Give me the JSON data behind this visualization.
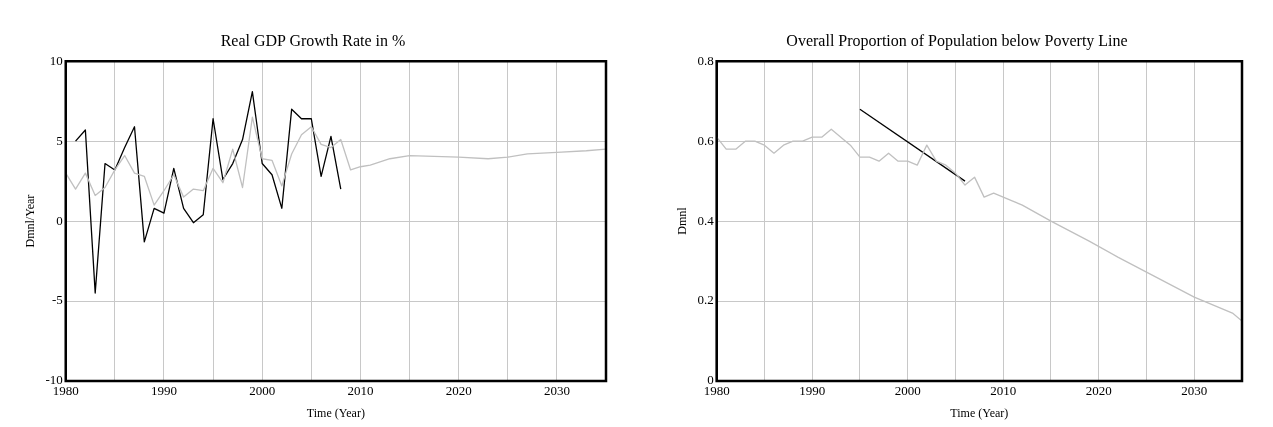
{
  "chart_data": [
    {
      "type": "line",
      "title": "Real GDP Growth Rate in %",
      "xlabel": "Time (Year)",
      "ylabel": "Dmnl/Year",
      "xlim": [
        1980,
        2035
      ],
      "ylim": [
        -10,
        10
      ],
      "xticks": [
        1980,
        {
          "value": 1985,
          "label": null
        },
        1990,
        {
          "value": 1995,
          "label": null
        },
        2000,
        {
          "value": 2005,
          "label": null
        },
        2010,
        {
          "value": 2015,
          "label": null
        },
        2020,
        {
          "value": 2025,
          "label": null
        },
        2030,
        {
          "value": 2035,
          "label": null
        }
      ],
      "yticks": [
        -10,
        -5,
        0,
        5,
        10
      ],
      "grid": true,
      "legend": false,
      "line_style": "solid",
      "series": [
        {
          "color": "#c0c0c0",
          "x": [
            1980,
            1981,
            1982,
            1983,
            1984,
            1985,
            1986,
            1987,
            1988,
            1989,
            1990,
            1991,
            1992,
            1993,
            1994,
            1995,
            1996,
            1997,
            1998,
            1999,
            2000,
            2001,
            2002,
            2003,
            2004,
            2005,
            2006,
            2007,
            2008,
            2009,
            2010,
            2011,
            2013,
            2015,
            2020,
            2023,
            2025,
            2027,
            2030,
            2033,
            2035
          ],
          "values": [
            3.0,
            2.0,
            3.0,
            1.6,
            2.1,
            3.2,
            4.1,
            3.0,
            2.8,
            1.0,
            1.9,
            2.9,
            1.5,
            2.0,
            1.9,
            3.3,
            2.4,
            4.5,
            2.1,
            6.5,
            3.9,
            3.8,
            2.2,
            4.2,
            5.4,
            5.9,
            4.8,
            4.6,
            5.1,
            3.2,
            3.4,
            3.5,
            3.9,
            4.1,
            4.0,
            3.9,
            4.0,
            4.2,
            4.3,
            4.4,
            4.5
          ]
        },
        {
          "color": "#000000",
          "x": [
            1981,
            1982,
            1983,
            1984,
            1985,
            1986,
            1987,
            1988,
            1989,
            1990,
            1991,
            1992,
            1993,
            1994,
            1995,
            1996,
            1997,
            1998,
            1999,
            2000,
            2001,
            2002,
            2003,
            2004,
            2005,
            2006,
            2007,
            2008
          ],
          "values": [
            5.0,
            5.7,
            -4.5,
            3.6,
            3.2,
            4.6,
            5.9,
            -1.3,
            0.8,
            0.5,
            3.3,
            0.8,
            -0.1,
            0.4,
            6.4,
            2.6,
            3.6,
            5.1,
            8.1,
            3.6,
            2.9,
            0.8,
            7.0,
            6.4,
            6.4,
            2.8,
            5.3,
            2.0
          ]
        }
      ]
    },
    {
      "type": "line",
      "title": "Overall Proportion of Population below Poverty Line",
      "xlabel": "Time (Year)",
      "ylabel": "Dmnl",
      "xlim": [
        1980,
        2035
      ],
      "ylim": [
        0,
        0.8
      ],
      "xticks": [
        1980,
        {
          "value": 1985,
          "label": null
        },
        1990,
        {
          "value": 1995,
          "label": null
        },
        2000,
        {
          "value": 2005,
          "label": null
        },
        2010,
        {
          "value": 2015,
          "label": null
        },
        2020,
        {
          "value": 2025,
          "label": null
        },
        2030,
        {
          "value": 2035,
          "label": null
        }
      ],
      "yticks": [
        0,
        0.2,
        0.4,
        0.6,
        0.8
      ],
      "grid": true,
      "legend": false,
      "line_style": "solid",
      "series": [
        {
          "color": "#c0c0c0",
          "x": [
            1980,
            1981,
            1982,
            1983,
            1984,
            1985,
            1986,
            1987,
            1988,
            1989,
            1990,
            1991,
            1992,
            1993,
            1994,
            1995,
            1996,
            1997,
            1998,
            1999,
            2000,
            2001,
            2002,
            2003,
            2004,
            2005,
            2006,
            2007,
            2008,
            2009,
            2011,
            2012,
            2015,
            2019,
            2022,
            2026,
            2030,
            2033,
            2034,
            2035
          ],
          "values": [
            0.61,
            0.58,
            0.58,
            0.6,
            0.6,
            0.59,
            0.57,
            0.59,
            0.6,
            0.6,
            0.61,
            0.61,
            0.63,
            0.61,
            0.59,
            0.56,
            0.56,
            0.55,
            0.57,
            0.55,
            0.55,
            0.54,
            0.59,
            0.55,
            0.54,
            0.52,
            0.49,
            0.51,
            0.46,
            0.47,
            0.45,
            0.44,
            0.4,
            0.35,
            0.31,
            0.26,
            0.21,
            0.18,
            0.17,
            0.15
          ]
        },
        {
          "color": "#000000",
          "x": [
            1995,
            2006
          ],
          "values": [
            0.68,
            0.5
          ]
        }
      ]
    }
  ]
}
